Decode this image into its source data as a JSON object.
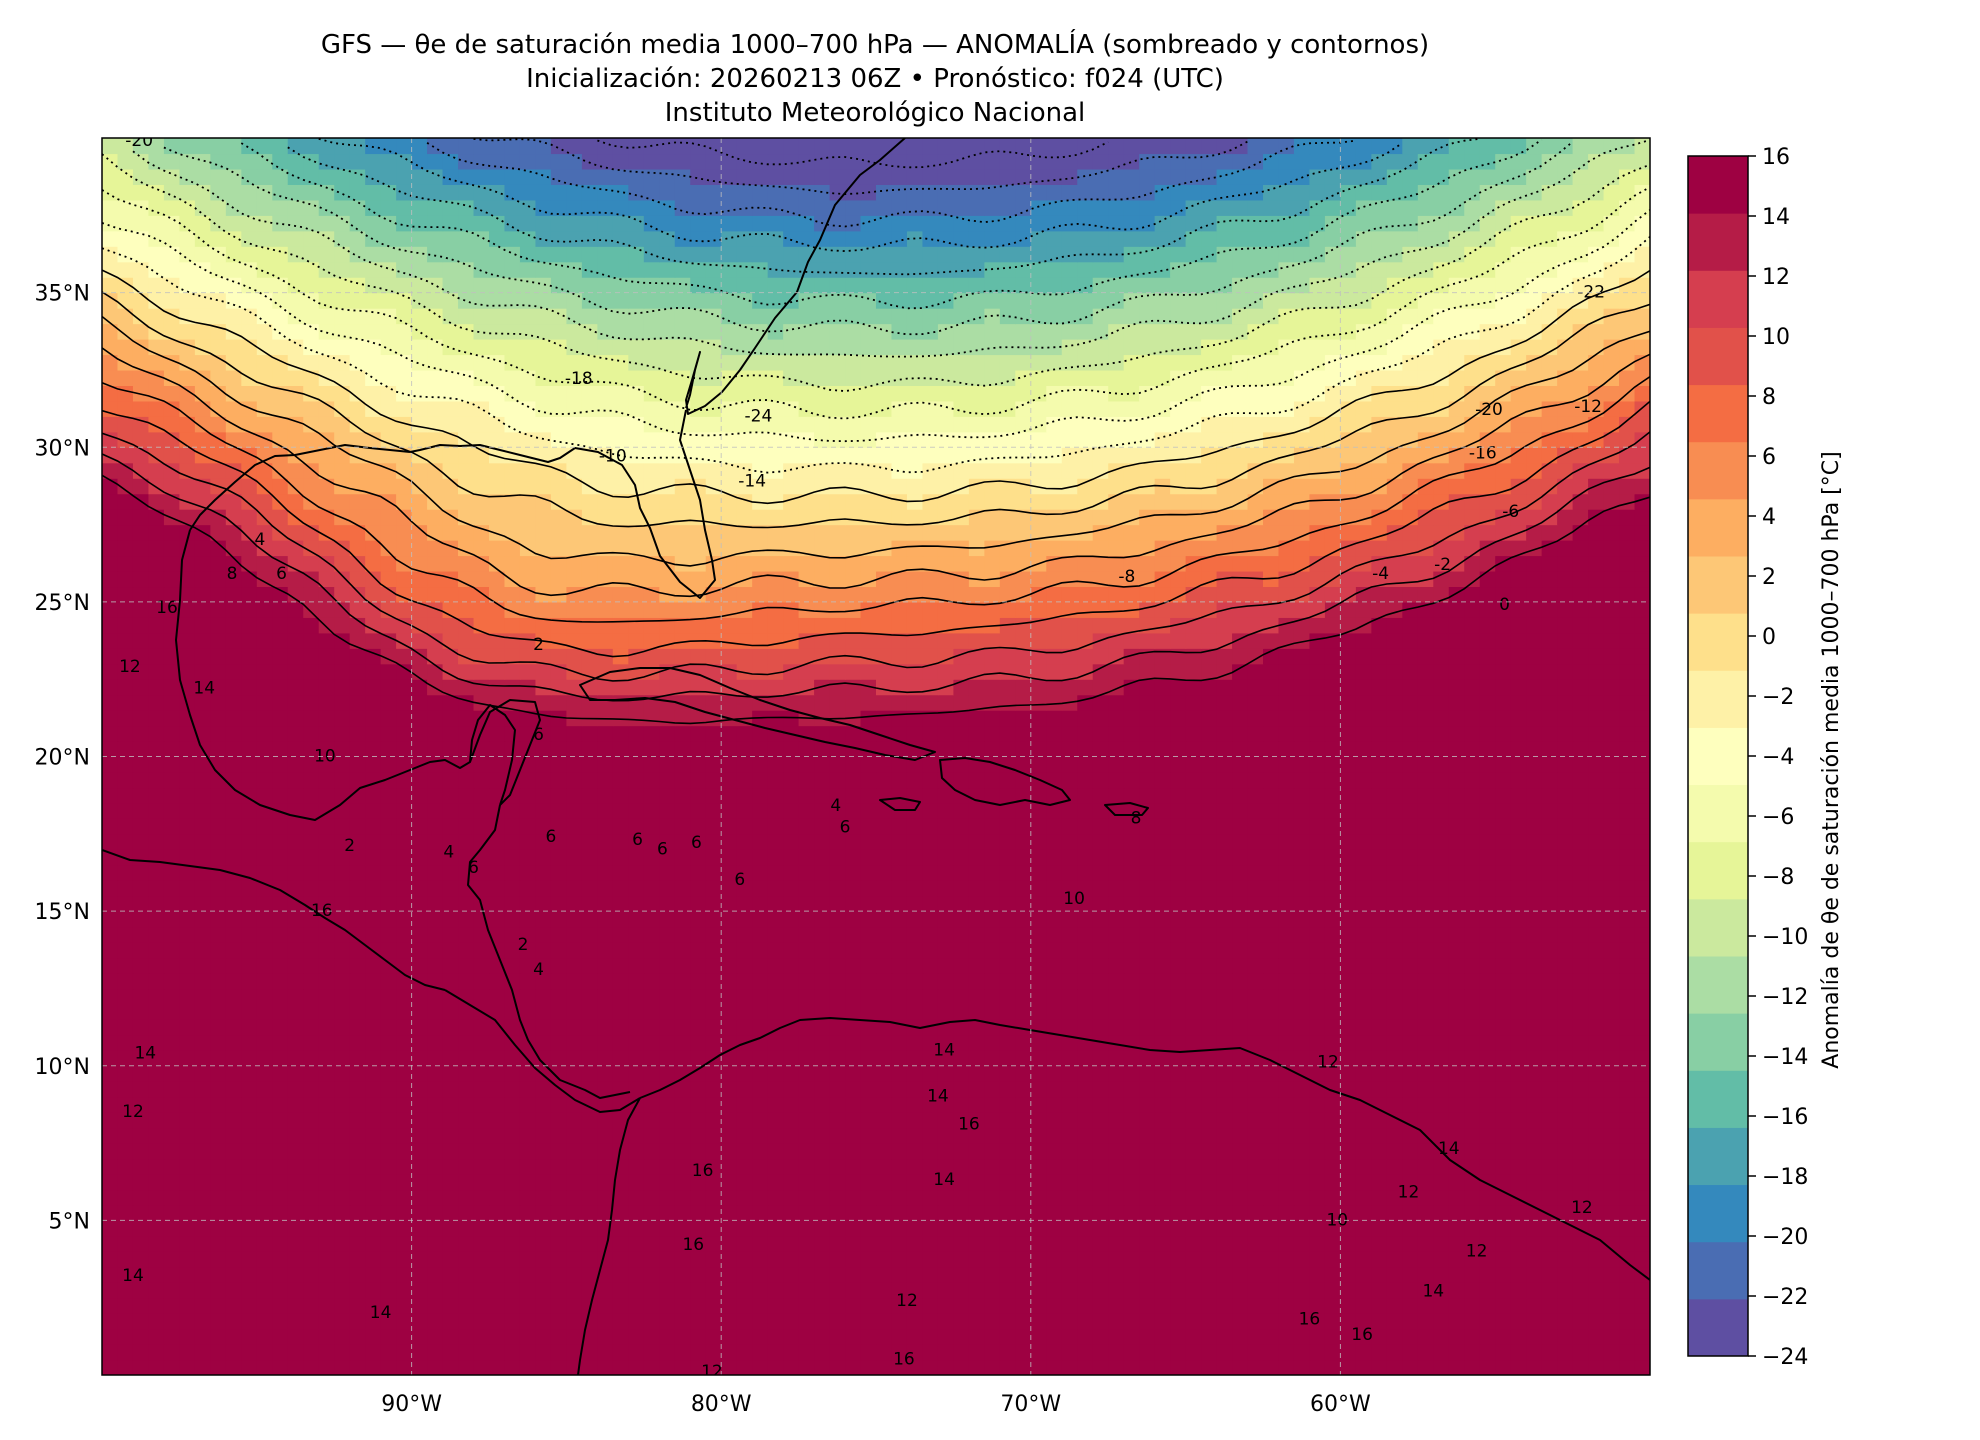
{
  "titles": {
    "line1": "GFS — θe de saturación media 1000–700 hPa — ANOMALÍA (sombreado y contornos)",
    "line2": "Inicialización: 20260213 06Z   •   Pronóstico: f024 (UTC)",
    "line3": "Instituto Meteorológico Nacional"
  },
  "map": {
    "lon_range": [
      -100,
      -50
    ],
    "lat_range": [
      0,
      40
    ],
    "gridlines": true,
    "lon_ticks": [
      {
        "value": -90,
        "label": "90°W"
      },
      {
        "value": -80,
        "label": "80°W"
      },
      {
        "value": -70,
        "label": "70°W"
      },
      {
        "value": -60,
        "label": "60°W"
      }
    ],
    "lat_ticks": [
      {
        "value": 35,
        "label": "35°N"
      },
      {
        "value": 30,
        "label": "30°N"
      },
      {
        "value": 25,
        "label": "25°N"
      },
      {
        "value": 20,
        "label": "20°N"
      },
      {
        "value": 15,
        "label": "15°N"
      },
      {
        "value": 10,
        "label": "10°N"
      },
      {
        "value": 5,
        "label": "5°N"
      }
    ],
    "contour_labels": [
      {
        "text": "-20",
        "lon": -98.8,
        "lat": 39.9
      },
      {
        "text": "-18",
        "lon": -84.6,
        "lat": 32.2
      },
      {
        "text": "-24",
        "lon": -78.8,
        "lat": 31.0
      },
      {
        "text": "-10",
        "lon": -83.5,
        "lat": 29.7
      },
      {
        "text": "-14",
        "lon": -79.0,
        "lat": 28.9
      },
      {
        "text": "-22",
        "lon": -51.9,
        "lat": 35.0
      },
      {
        "text": "-20",
        "lon": -55.2,
        "lat": 31.2
      },
      {
        "text": "-12",
        "lon": -52.0,
        "lat": 31.3
      },
      {
        "text": "-16",
        "lon": -55.4,
        "lat": 29.8
      },
      {
        "text": "-6",
        "lon": -54.5,
        "lat": 27.9
      },
      {
        "text": "-2",
        "lon": -56.7,
        "lat": 26.2
      },
      {
        "text": "-4",
        "lon": -58.7,
        "lat": 25.9
      },
      {
        "text": "-8",
        "lon": -66.9,
        "lat": 25.8
      },
      {
        "text": "0",
        "lon": -54.7,
        "lat": 24.9
      },
      {
        "text": "4",
        "lon": -94.9,
        "lat": 27.0
      },
      {
        "text": "8",
        "lon": -95.8,
        "lat": 25.9
      },
      {
        "text": "6",
        "lon": -94.2,
        "lat": 25.9
      },
      {
        "text": "2",
        "lon": -85.9,
        "lat": 23.6
      },
      {
        "text": "16",
        "lon": -97.9,
        "lat": 24.8
      },
      {
        "text": "12",
        "lon": -99.1,
        "lat": 22.9
      },
      {
        "text": "14",
        "lon": -96.7,
        "lat": 22.2
      },
      {
        "text": "10",
        "lon": -92.8,
        "lat": 20.0
      },
      {
        "text": "6",
        "lon": -85.9,
        "lat": 20.7
      },
      {
        "text": "4",
        "lon": -76.3,
        "lat": 18.4
      },
      {
        "text": "6",
        "lon": -76.0,
        "lat": 17.7
      },
      {
        "text": "6",
        "lon": -85.5,
        "lat": 17.4
      },
      {
        "text": "6",
        "lon": -82.7,
        "lat": 17.3
      },
      {
        "text": "6",
        "lon": -81.9,
        "lat": 17.0
      },
      {
        "text": "6",
        "lon": -80.8,
        "lat": 17.2
      },
      {
        "text": "6",
        "lon": -79.4,
        "lat": 16.0
      },
      {
        "text": "6",
        "lon": -88.0,
        "lat": 16.4
      },
      {
        "text": "4",
        "lon": -88.8,
        "lat": 16.9
      },
      {
        "text": "2",
        "lon": -92.0,
        "lat": 17.1
      },
      {
        "text": "8",
        "lon": -66.6,
        "lat": 18.0
      },
      {
        "text": "10",
        "lon": -68.6,
        "lat": 15.4
      },
      {
        "text": "16",
        "lon": -92.9,
        "lat": 15.0
      },
      {
        "text": "2",
        "lon": -86.4,
        "lat": 13.9
      },
      {
        "text": "4",
        "lon": -85.9,
        "lat": 13.1
      },
      {
        "text": "14",
        "lon": -72.8,
        "lat": 10.5
      },
      {
        "text": "14",
        "lon": -98.6,
        "lat": 10.4
      },
      {
        "text": "12",
        "lon": -99.0,
        "lat": 8.5
      },
      {
        "text": "14",
        "lon": -73.0,
        "lat": 9.0
      },
      {
        "text": "16",
        "lon": -72.0,
        "lat": 8.1
      },
      {
        "text": "16",
        "lon": -80.6,
        "lat": 6.6
      },
      {
        "text": "14",
        "lon": -72.8,
        "lat": 6.3
      },
      {
        "text": "16",
        "lon": -80.9,
        "lat": 4.2
      },
      {
        "text": "12",
        "lon": -60.4,
        "lat": 10.1
      },
      {
        "text": "12",
        "lon": -57.8,
        "lat": 5.9
      },
      {
        "text": "14",
        "lon": -56.5,
        "lat": 7.3
      },
      {
        "text": "10",
        "lon": -60.1,
        "lat": 5.0
      },
      {
        "text": "12",
        "lon": -55.6,
        "lat": 4.0
      },
      {
        "text": "14",
        "lon": -57.0,
        "lat": 2.7
      },
      {
        "text": "16",
        "lon": -61.0,
        "lat": 1.8
      },
      {
        "text": "16",
        "lon": -59.3,
        "lat": 1.3
      },
      {
        "text": "14",
        "lon": -99.0,
        "lat": 3.2
      },
      {
        "text": "14",
        "lon": -91.0,
        "lat": 2.0
      },
      {
        "text": "12",
        "lon": -74.0,
        "lat": 2.4
      },
      {
        "text": "12",
        "lon": -52.2,
        "lat": 5.4
      },
      {
        "text": "12",
        "lon": -80.3,
        "lat": 0.1
      },
      {
        "text": "16",
        "lon": -74.1,
        "lat": 0.5
      }
    ]
  },
  "colorbar": {
    "label": "Anomalía de θe de saturación media 1000–700 hPa [°C]",
    "levels": [
      -24,
      -22,
      -20,
      -18,
      -16,
      -14,
      -12,
      -10,
      -8,
      -6,
      -4,
      -2,
      0,
      2,
      4,
      6,
      8,
      10,
      12,
      14,
      16
    ],
    "tick_labels": [
      "16",
      "14",
      "12",
      "10",
      "8",
      "6",
      "4",
      "2",
      "0",
      "−2",
      "−4",
      "−6",
      "−8",
      "−10",
      "−12",
      "−14",
      "−16",
      "−18",
      "−20",
      "−22",
      "−24"
    ],
    "colors": [
      "#5e4fa2",
      "#4a6db3",
      "#3489bd",
      "#4ba2b0",
      "#62bda7",
      "#88cfa4",
      "#abdda4",
      "#cbe99e",
      "#e6f598",
      "#f4fbad",
      "#feffbe",
      "#fef1a7",
      "#fee08b",
      "#fdc776",
      "#fdae61",
      "#f88d52",
      "#f46d43",
      "#e1514a",
      "#d53e4f",
      "#b51c47",
      "#9e0142"
    ]
  },
  "chart_data": {
    "type": "heatmap",
    "title": "GFS — θe de saturación media 1000–700 hPa — ANOMALÍA (sombreado y contornos)",
    "subtitle": "Inicialización: 20260213 06Z • Pronóstico: f024 (UTC)",
    "xlabel": "",
    "ylabel": "",
    "xlim": [
      -100,
      -50
    ],
    "ylim": [
      0,
      40
    ],
    "colorbar_range": [
      -24,
      16
    ],
    "colorbar_step": 2,
    "pattern": "Strong negative anomaly (≤ −24 °C) over the western North Atlantic north of ~29°N, gradient through 0 °C near 24–25°N, positive anomalies increasing southward to ≥ 16 °C over the eastern Pacific, Colombia and Venezuela."
  }
}
